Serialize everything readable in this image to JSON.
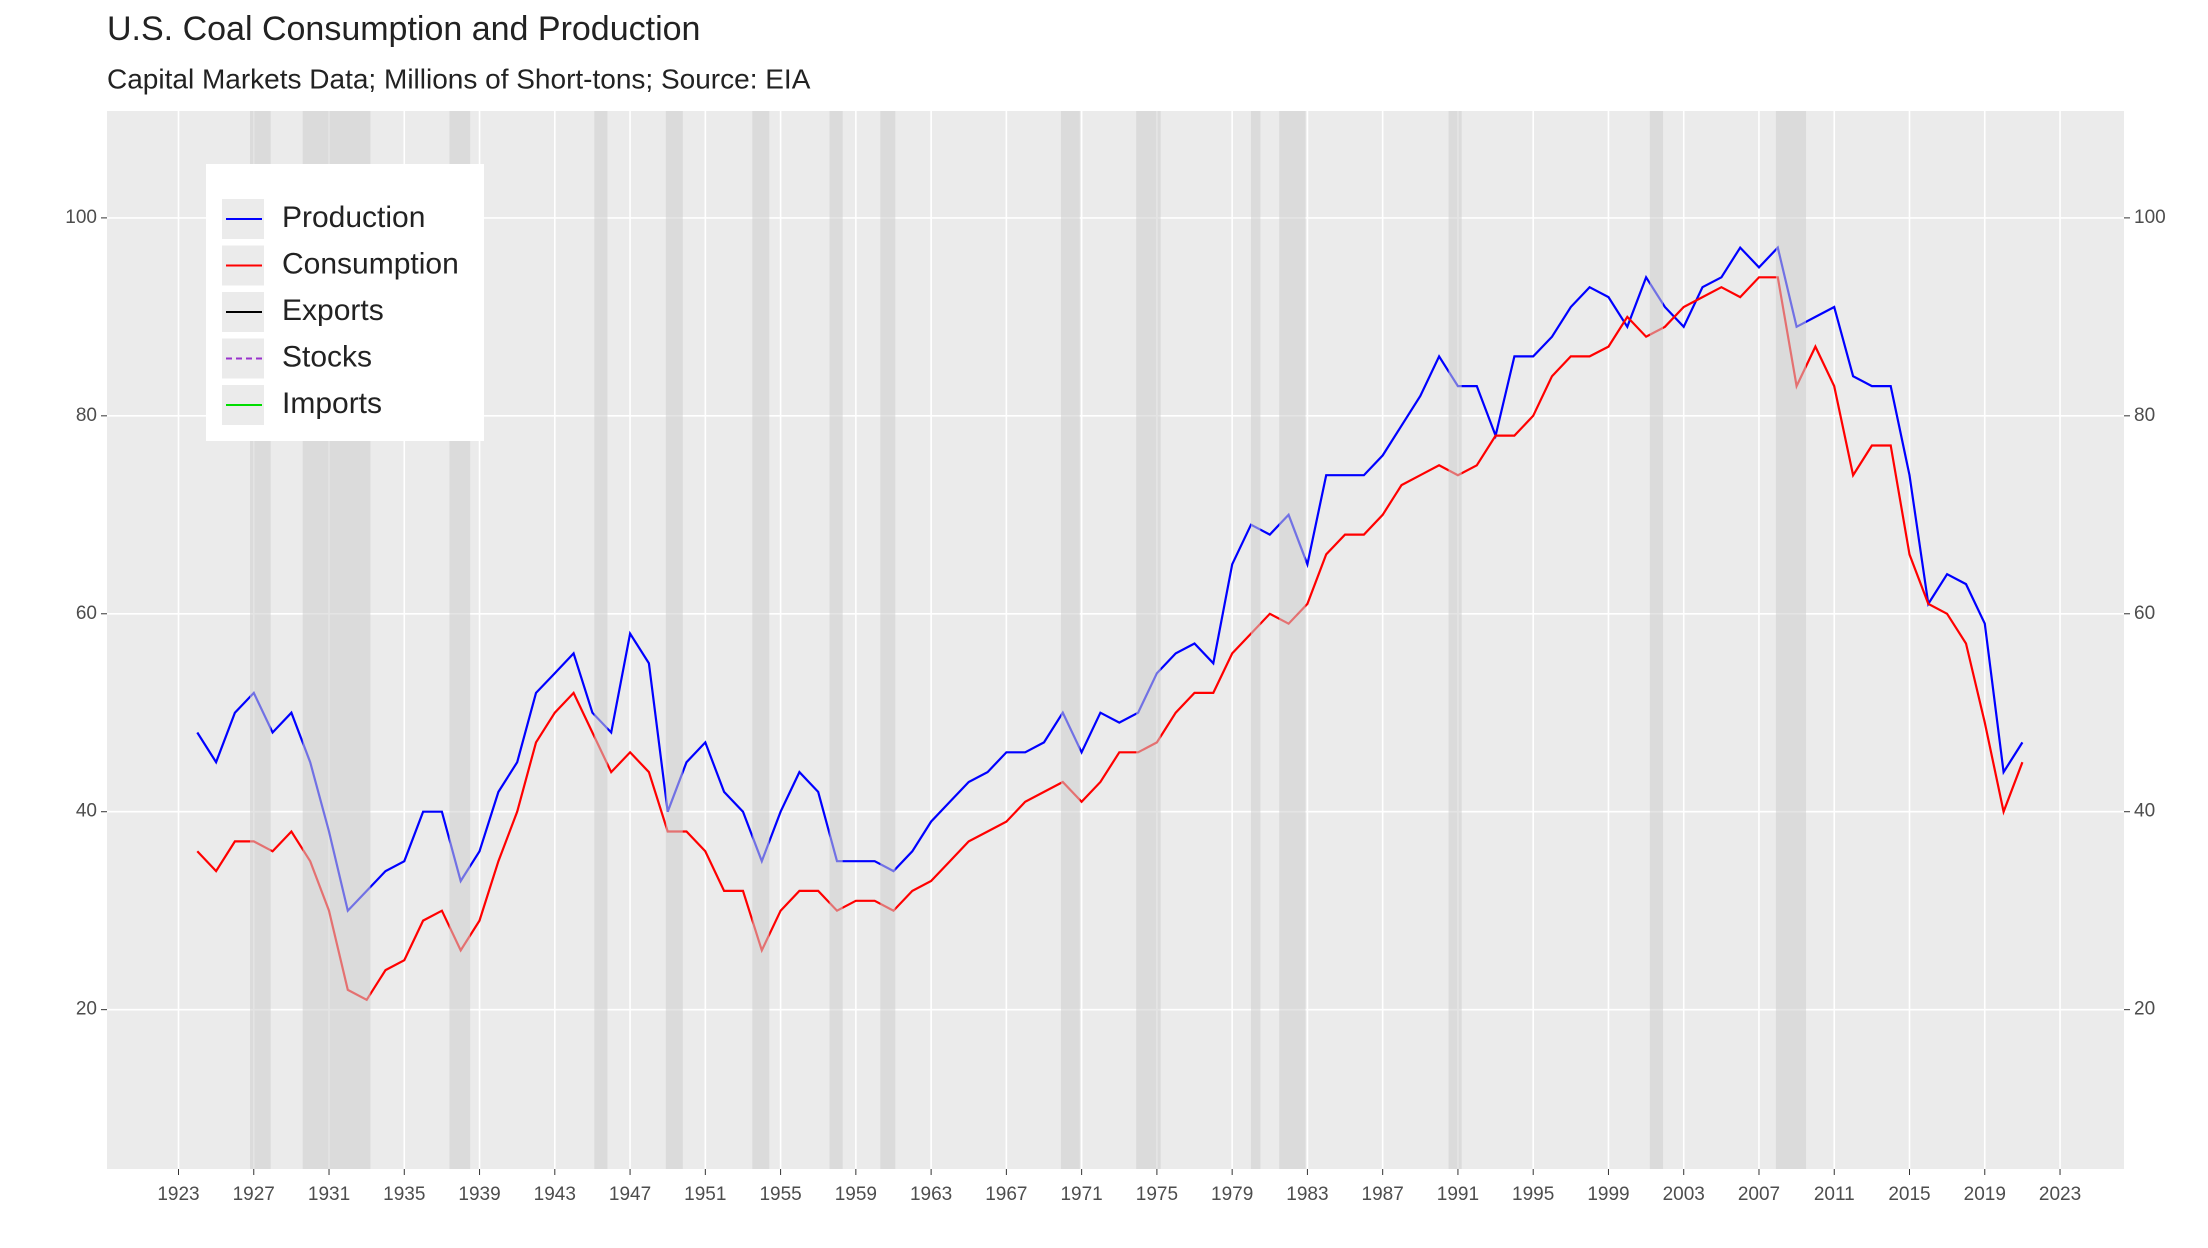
{
  "chart_data": {
    "type": "line",
    "title": "U.S. Coal Consumption and Production",
    "subtitle": "Capital Markets Data; Millions of Short-tons; Source: EIA",
    "x": [
      1924,
      1925,
      1926,
      1927,
      1928,
      1929,
      1930,
      1931,
      1932,
      1933,
      1934,
      1935,
      1936,
      1937,
      1938,
      1939,
      1940,
      1941,
      1942,
      1943,
      1944,
      1945,
      1946,
      1947,
      1948,
      1949,
      1950,
      1951,
      1952,
      1953,
      1954,
      1955,
      1956,
      1957,
      1958,
      1959,
      1960,
      1961,
      1962,
      1963,
      1964,
      1965,
      1966,
      1967,
      1968,
      1969,
      1970,
      1971,
      1972,
      1973,
      1974,
      1975,
      1976,
      1977,
      1978,
      1979,
      1980,
      1981,
      1982,
      1983,
      1984,
      1985,
      1986,
      1987,
      1988,
      1989,
      1990,
      1991,
      1992,
      1993,
      1994,
      1995,
      1996,
      1997,
      1998,
      1999,
      2000,
      2001,
      2002,
      2003,
      2004,
      2005,
      2006,
      2007,
      2008,
      2009,
      2010,
      2011,
      2012,
      2013,
      2014,
      2015,
      2016,
      2017,
      2018,
      2019,
      2020,
      2021
    ],
    "series": [
      {
        "name": "Production",
        "color": "#0000ff",
        "dash": "solid",
        "values": [
          48,
          45,
          50,
          52,
          48,
          50,
          45,
          38,
          30,
          32,
          34,
          35,
          40,
          40,
          33,
          36,
          42,
          45,
          52,
          54,
          56,
          50,
          48,
          58,
          55,
          40,
          45,
          47,
          42,
          40,
          35,
          40,
          44,
          42,
          35,
          35,
          35,
          34,
          36,
          39,
          41,
          43,
          44,
          46,
          46,
          47,
          50,
          46,
          50,
          49,
          50,
          54,
          56,
          57,
          55,
          65,
          69,
          68,
          70,
          65,
          74,
          74,
          74,
          76,
          79,
          82,
          86,
          83,
          83,
          78,
          86,
          86,
          88,
          91,
          93,
          92,
          89,
          94,
          91,
          89,
          93,
          94,
          97,
          95,
          97,
          89,
          90,
          91,
          84,
          83,
          83,
          74,
          61,
          64,
          63,
          59,
          44,
          47
        ]
      },
      {
        "name": "Consumption",
        "color": "#ff0000",
        "dash": "solid",
        "values": [
          36,
          34,
          37,
          37,
          36,
          38,
          35,
          30,
          22,
          21,
          24,
          25,
          29,
          30,
          26,
          29,
          35,
          40,
          47,
          50,
          52,
          48,
          44,
          46,
          44,
          38,
          38,
          36,
          32,
          32,
          26,
          30,
          32,
          32,
          30,
          31,
          31,
          30,
          32,
          33,
          35,
          37,
          38,
          39,
          41,
          42,
          43,
          41,
          43,
          46,
          46,
          47,
          50,
          52,
          52,
          56,
          58,
          60,
          59,
          61,
          66,
          68,
          68,
          70,
          73,
          74,
          75,
          74,
          75,
          78,
          78,
          80,
          84,
          86,
          86,
          87,
          90,
          88,
          89,
          91,
          92,
          93,
          92,
          94,
          94,
          83,
          87,
          83,
          74,
          77,
          77,
          66,
          61,
          60,
          57,
          49,
          40,
          45
        ]
      },
      {
        "name": "Exports",
        "color": "#000000",
        "dash": "solid",
        "values": [
          null,
          null,
          null,
          null,
          null,
          null,
          null,
          null,
          null,
          null,
          null,
          null,
          null,
          null,
          null,
          null,
          null,
          null,
          null,
          null,
          null,
          null,
          null,
          null,
          null,
          null,
          null,
          null,
          null,
          null,
          null,
          null,
          null,
          null,
          null,
          null,
          null,
          null,
          null,
          null,
          null,
          null,
          null,
          null,
          null,
          null,
          null,
          null,
          null,
          null,
          null,
          null,
          null,
          null,
          null,
          null,
          null,
          null,
          null,
          null,
          null,
          null,
          null,
          null,
          null,
          null,
          null,
          null,
          null,
          null,
          null,
          null,
          null,
          null,
          null,
          null,
          null,
          null,
          null,
          null,
          null,
          null,
          null,
          null,
          null,
          null,
          null,
          null,
          null,
          null,
          null,
          null,
          null,
          null,
          null,
          null,
          null,
          null
        ]
      },
      {
        "name": "Stocks",
        "color": "#9932cc",
        "dash": "dashed",
        "values": [
          null,
          null,
          null,
          null,
          null,
          null,
          null,
          null,
          null,
          null,
          null,
          null,
          null,
          null,
          null,
          null,
          null,
          null,
          null,
          null,
          null,
          null,
          null,
          null,
          null,
          null,
          null,
          null,
          null,
          null,
          null,
          null,
          null,
          null,
          null,
          null,
          null,
          null,
          null,
          null,
          null,
          null,
          null,
          null,
          null,
          null,
          null,
          null,
          null,
          null,
          null,
          null,
          null,
          null,
          null,
          null,
          null,
          null,
          null,
          null,
          null,
          null,
          null,
          null,
          null,
          null,
          null,
          null,
          null,
          null,
          null,
          null,
          null,
          null,
          null,
          null,
          null,
          null,
          null,
          null,
          null,
          null,
          null,
          null,
          null,
          null,
          null,
          null,
          null,
          null,
          null,
          null,
          null,
          null,
          null,
          null,
          null,
          null
        ]
      },
      {
        "name": "Imports",
        "color": "#00dd00",
        "dash": "solid",
        "values": [
          null,
          null,
          null,
          null,
          null,
          null,
          null,
          null,
          null,
          null,
          null,
          null,
          null,
          null,
          null,
          null,
          null,
          null,
          null,
          null,
          null,
          null,
          null,
          null,
          null,
          null,
          null,
          null,
          null,
          null,
          null,
          null,
          null,
          null,
          null,
          null,
          null,
          null,
          null,
          null,
          null,
          null,
          null,
          null,
          null,
          null,
          null,
          null,
          null,
          null,
          null,
          null,
          null,
          null,
          null,
          null,
          null,
          null,
          null,
          null,
          null,
          null,
          null,
          null,
          null,
          null,
          null,
          null,
          null,
          null,
          null,
          null,
          null,
          null,
          null,
          null,
          null,
          null,
          null,
          null,
          null,
          null,
          null,
          null,
          null,
          null,
          null,
          null,
          null,
          null,
          null,
          null,
          null,
          null,
          null,
          null,
          null,
          null
        ]
      }
    ],
    "shaded_periods": [
      [
        1926.8,
        1927.9
      ],
      [
        1929.6,
        1933.2
      ],
      [
        1937.4,
        1938.5
      ],
      [
        1945.1,
        1945.8
      ],
      [
        1948.9,
        1949.8
      ],
      [
        1953.5,
        1954.4
      ],
      [
        1957.6,
        1958.3
      ],
      [
        1960.3,
        1961.1
      ],
      [
        1969.9,
        1970.9
      ],
      [
        1973.9,
        1975.2
      ],
      [
        1980.0,
        1980.5
      ],
      [
        1981.5,
        1982.9
      ],
      [
        1990.5,
        1991.2
      ],
      [
        2001.2,
        2001.9
      ],
      [
        2007.9,
        2009.5
      ]
    ],
    "xlim": [
      1919.2,
      2026.4
    ],
    "xticks": [
      1923,
      1927,
      1931,
      1935,
      1939,
      1943,
      1947,
      1951,
      1955,
      1959,
      1963,
      1967,
      1971,
      1975,
      1979,
      1983,
      1987,
      1991,
      1995,
      1999,
      2003,
      2007,
      2011,
      2015,
      2019,
      2023
    ],
    "ylim": [
      3.9,
      110.8
    ],
    "yticks": [
      20,
      40,
      60,
      80,
      100
    ],
    "grid": true,
    "legend_position": "top-left"
  }
}
